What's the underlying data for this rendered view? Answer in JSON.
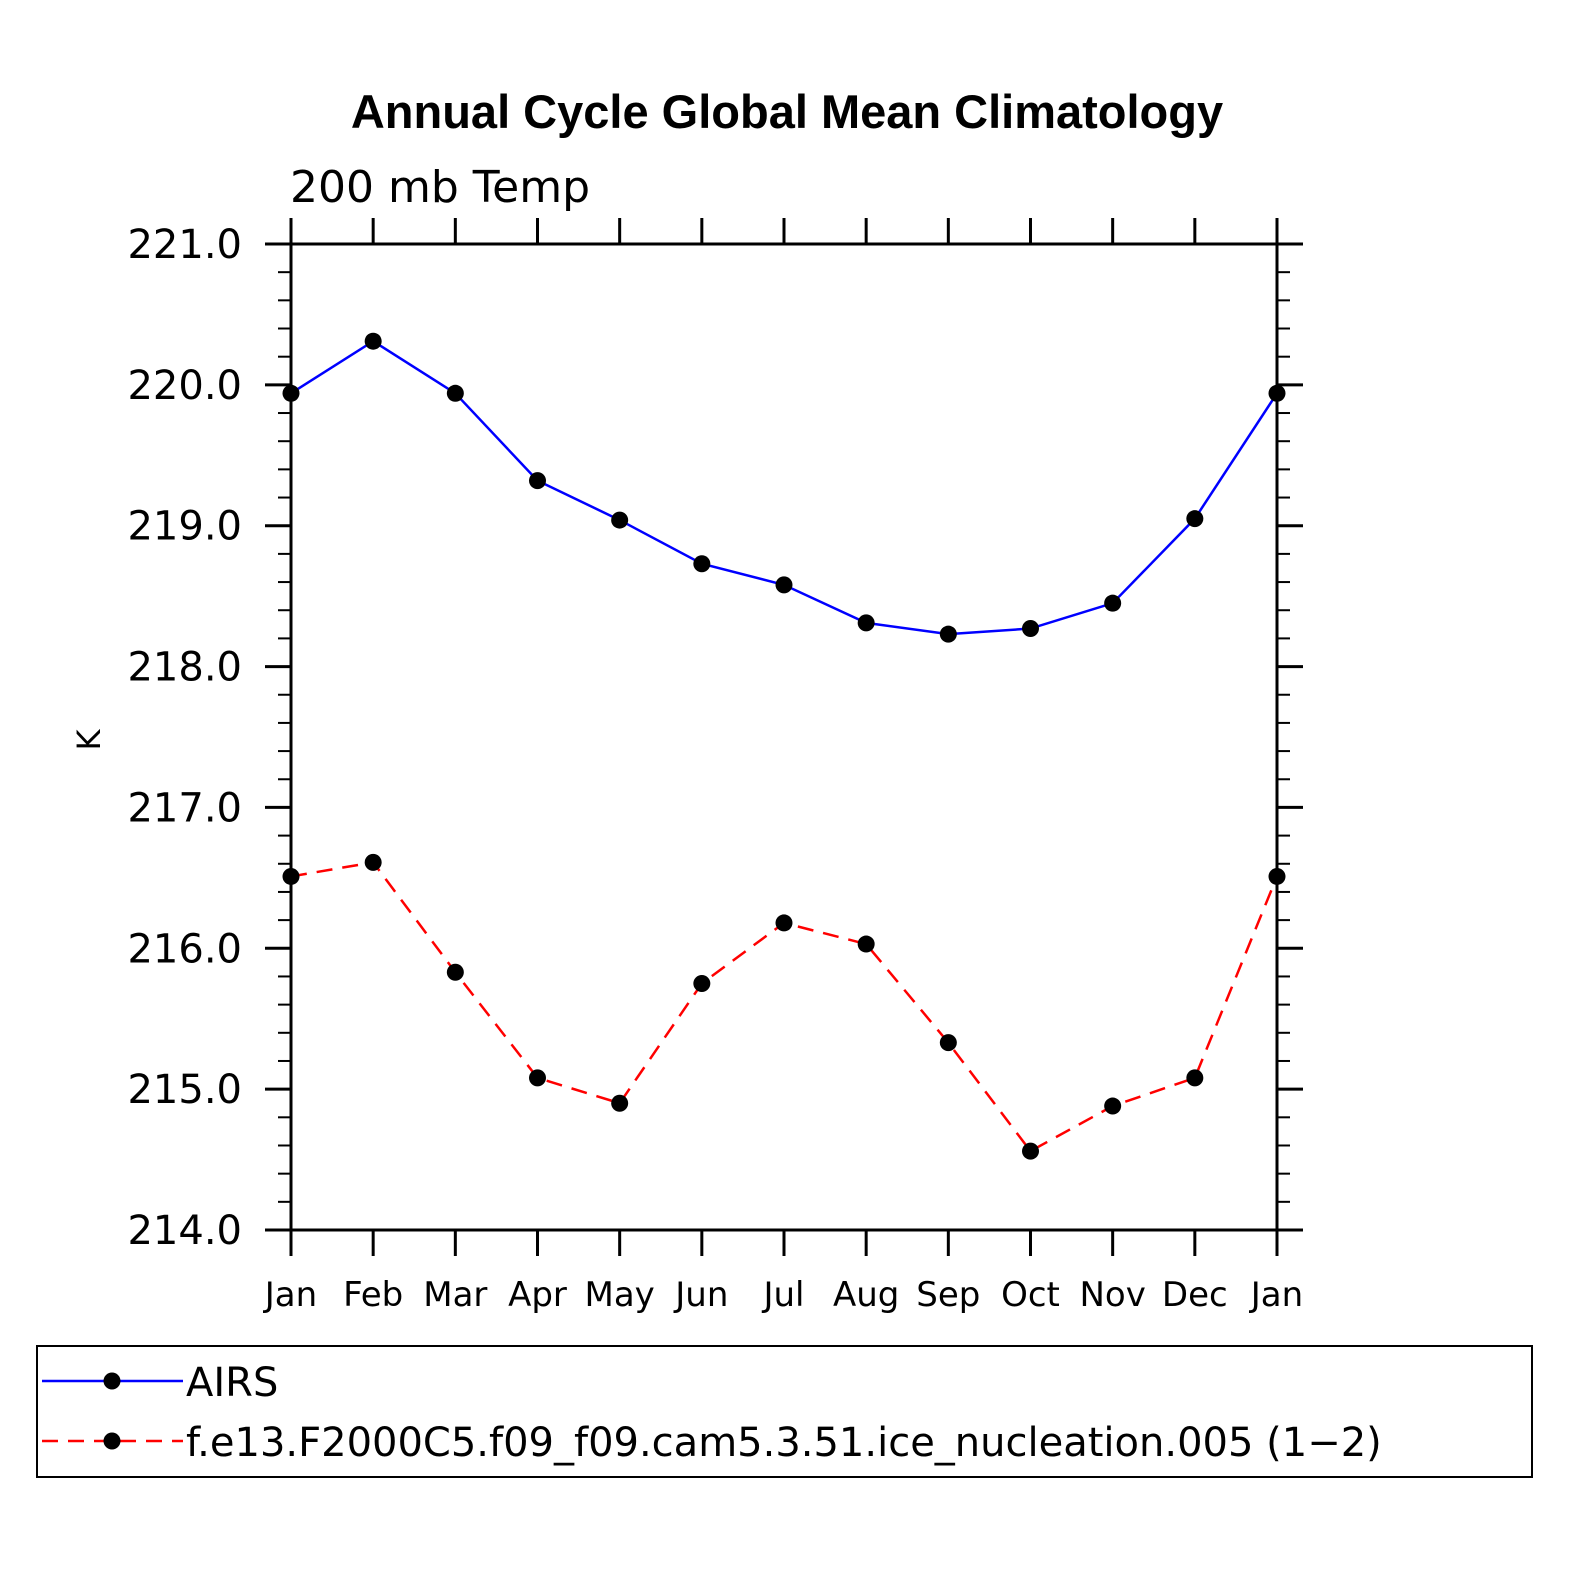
{
  "chart_data": {
    "type": "line",
    "title": "Annual Cycle Global Mean Climatology",
    "subtitle": "200 mb Temp",
    "xlabel": "",
    "ylabel": "K",
    "categories": [
      "Jan",
      "Feb",
      "Mar",
      "Apr",
      "May",
      "Jun",
      "Jul",
      "Aug",
      "Sep",
      "Oct",
      "Nov",
      "Dec",
      "Jan"
    ],
    "ylim": [
      214.0,
      221.0
    ],
    "yticks": [
      "214.0",
      "215.0",
      "216.0",
      "217.0",
      "218.0",
      "219.0",
      "220.0",
      "221.0"
    ],
    "series": [
      {
        "name": "AIRS",
        "color": "#0000ff",
        "dash": "solid",
        "values": [
          219.94,
          220.31,
          219.94,
          219.32,
          219.04,
          218.73,
          218.58,
          218.31,
          218.23,
          218.27,
          218.45,
          219.05,
          219.94
        ]
      },
      {
        "name": "f.e13.F2000C5.f09_f09.cam5.3.51.ice_nucleation.005 (1−2)",
        "color": "#ff0000",
        "dash": "dashed",
        "values": [
          216.51,
          216.61,
          215.83,
          215.08,
          214.9,
          215.75,
          216.18,
          216.03,
          215.33,
          214.56,
          214.88,
          215.08,
          216.51
        ]
      }
    ],
    "marker_color": "#000000"
  }
}
